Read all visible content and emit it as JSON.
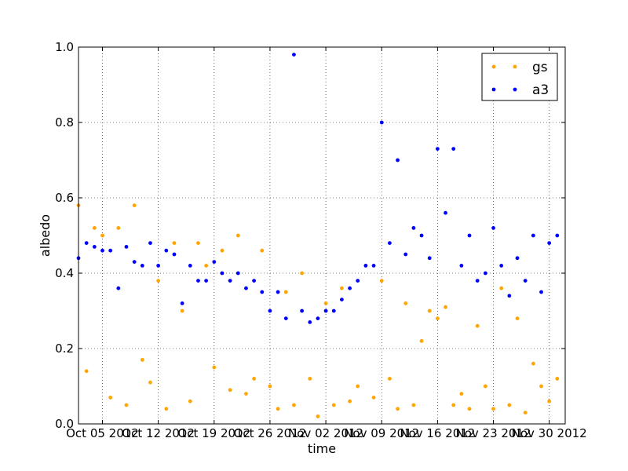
{
  "chart_data": {
    "type": "scatter",
    "title": "",
    "xlabel": "time",
    "ylabel": "albedo",
    "x_start": "2012-10-02",
    "x_end": "2012-11-01",
    "ylim": [
      0.0,
      1.0
    ],
    "grid": true,
    "legend_position": "top-right",
    "x_ticks": [
      {
        "date": "2012-10-05",
        "label": "Oct 05 2012"
      },
      {
        "date": "2012-10-12",
        "label": "Oct 12 2012"
      },
      {
        "date": "2012-10-19",
        "label": "Oct 19 2012"
      },
      {
        "date": "2012-10-26",
        "label": "Oct 26 2012"
      },
      {
        "date": "2012-11-02",
        "label": "Nov 02 2012"
      },
      {
        "date": "2012-11-09",
        "label": "Nov 09 2012"
      },
      {
        "date": "2012-11-16",
        "label": "Nov 16 2012"
      },
      {
        "date": "2012-11-23",
        "label": "Nov 23 2012"
      },
      {
        "date": "2012-11-30",
        "label": "Nov 30 2012"
      }
    ],
    "y_ticks": [
      {
        "value": 0.0,
        "label": "0.0"
      },
      {
        "value": 0.2,
        "label": "0.2"
      },
      {
        "value": 0.4,
        "label": "0.4"
      },
      {
        "value": 0.6,
        "label": "0.6"
      },
      {
        "value": 0.8,
        "label": "0.8"
      },
      {
        "value": 1.0,
        "label": "1.0"
      }
    ],
    "series": [
      {
        "name": "gs",
        "color": "#ffa500",
        "x": [
          "2012-10-02",
          "2012-10-03",
          "2012-10-04",
          "2012-10-05",
          "2012-10-06",
          "2012-10-07",
          "2012-10-08",
          "2012-10-09",
          "2012-10-10",
          "2012-10-11",
          "2012-10-12",
          "2012-10-13",
          "2012-10-14",
          "2012-10-15",
          "2012-10-16",
          "2012-10-17",
          "2012-10-18",
          "2012-10-19",
          "2012-10-20",
          "2012-10-21",
          "2012-10-22",
          "2012-10-23",
          "2012-10-24",
          "2012-10-25",
          "2012-10-26",
          "2012-10-27",
          "2012-10-28",
          "2012-10-29",
          "2012-10-30",
          "2012-10-31",
          "2012-11-01",
          "2012-11-02",
          "2012-11-03",
          "2012-11-04",
          "2012-11-05",
          "2012-11-06",
          "2012-11-07",
          "2012-11-08",
          "2012-11-09",
          "2012-11-10",
          "2012-11-11",
          "2012-11-12",
          "2012-11-13",
          "2012-11-14",
          "2012-11-15",
          "2012-11-16",
          "2012-11-17",
          "2012-11-18",
          "2012-11-19",
          "2012-11-20",
          "2012-11-21",
          "2012-11-22",
          "2012-11-23",
          "2012-11-24",
          "2012-11-25",
          "2012-11-26",
          "2012-11-27",
          "2012-11-28",
          "2012-11-29",
          "2012-11-30",
          "2012-12-01"
        ],
        "y": [
          0.58,
          0.14,
          0.52,
          0.5,
          0.07,
          0.52,
          0.05,
          0.58,
          0.17,
          0.11,
          0.38,
          0.04,
          0.48,
          0.3,
          0.06,
          0.48,
          0.42,
          0.15,
          0.46,
          0.09,
          0.5,
          0.08,
          0.12,
          0.46,
          0.1,
          0.04,
          0.35,
          0.05,
          0.4,
          0.12,
          0.02,
          0.32,
          0.05,
          0.36,
          0.06,
          0.1,
          0.42,
          0.07,
          0.38,
          0.12,
          0.04,
          0.32,
          0.05,
          0.22,
          0.3,
          0.28,
          0.31,
          0.05,
          0.08,
          0.04,
          0.26,
          0.1,
          0.04,
          0.36,
          0.05,
          0.28,
          0.03,
          0.16,
          0.1,
          0.06,
          0.12
        ]
      },
      {
        "name": "a3",
        "color": "#0000ff",
        "x": [
          "2012-10-02",
          "2012-10-03",
          "2012-10-04",
          "2012-10-05",
          "2012-10-06",
          "2012-10-07",
          "2012-10-08",
          "2012-10-09",
          "2012-10-10",
          "2012-10-11",
          "2012-10-12",
          "2012-10-13",
          "2012-10-14",
          "2012-10-15",
          "2012-10-16",
          "2012-10-17",
          "2012-10-18",
          "2012-10-19",
          "2012-10-20",
          "2012-10-21",
          "2012-10-22",
          "2012-10-23",
          "2012-10-24",
          "2012-10-25",
          "2012-10-26",
          "2012-10-27",
          "2012-10-28",
          "2012-10-29",
          "2012-10-30",
          "2012-10-31",
          "2012-11-01",
          "2012-11-02",
          "2012-11-03",
          "2012-11-04",
          "2012-11-05",
          "2012-11-06",
          "2012-11-07",
          "2012-11-08",
          "2012-11-09",
          "2012-11-10",
          "2012-11-11",
          "2012-11-12",
          "2012-11-13",
          "2012-11-14",
          "2012-11-15",
          "2012-11-16",
          "2012-11-17",
          "2012-11-18",
          "2012-11-19",
          "2012-11-20",
          "2012-11-21",
          "2012-11-22",
          "2012-11-23",
          "2012-11-24",
          "2012-11-25",
          "2012-11-26",
          "2012-11-27",
          "2012-11-28",
          "2012-11-29",
          "2012-11-30",
          "2012-12-01"
        ],
        "y": [
          0.44,
          0.48,
          0.47,
          0.46,
          0.46,
          0.36,
          0.47,
          0.43,
          0.42,
          0.48,
          0.42,
          0.46,
          0.45,
          0.32,
          0.42,
          0.38,
          0.38,
          0.43,
          0.4,
          0.38,
          0.4,
          0.36,
          0.38,
          0.35,
          0.3,
          0.35,
          0.28,
          0.98,
          0.3,
          0.27,
          0.28,
          0.3,
          0.3,
          0.33,
          0.36,
          0.38,
          0.42,
          0.42,
          0.8,
          0.48,
          0.7,
          0.45,
          0.52,
          0.5,
          0.44,
          0.73,
          0.56,
          0.73,
          0.42,
          0.5,
          0.38,
          0.4,
          0.52,
          0.42,
          0.34,
          0.44,
          0.38,
          0.5,
          0.35,
          0.48,
          0.5
        ]
      }
    ]
  }
}
